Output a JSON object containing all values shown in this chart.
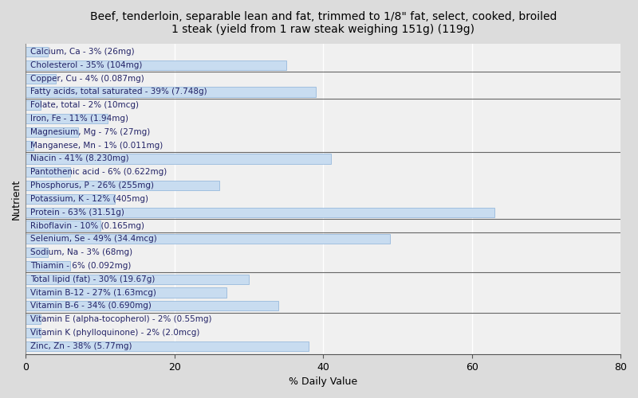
{
  "title": "Beef, tenderloin, separable lean and fat, trimmed to 1/8\" fat, select, cooked, broiled\n1 steak (yield from 1 raw steak weighing 151g) (119g)",
  "xlabel": "% Daily Value",
  "ylabel": "Nutrient",
  "xlim": [
    0,
    80
  ],
  "background_color": "#dcdcdc",
  "plot_bg_color": "#f0f0f0",
  "bar_color": "#c8dcf0",
  "bar_edge_color": "#8ab0d8",
  "text_color": "#222266",
  "nutrients": [
    "Calcium, Ca - 3% (26mg)",
    "Cholesterol - 35% (104mg)",
    "Copper, Cu - 4% (0.087mg)",
    "Fatty acids, total saturated - 39% (7.748g)",
    "Folate, total - 2% (10mcg)",
    "Iron, Fe - 11% (1.94mg)",
    "Magnesium, Mg - 7% (27mg)",
    "Manganese, Mn - 1% (0.011mg)",
    "Niacin - 41% (8.230mg)",
    "Pantothenic acid - 6% (0.622mg)",
    "Phosphorus, P - 26% (255mg)",
    "Potassium, K - 12% (405mg)",
    "Protein - 63% (31.51g)",
    "Riboflavin - 10% (0.165mg)",
    "Selenium, Se - 49% (34.4mcg)",
    "Sodium, Na - 3% (68mg)",
    "Thiamin - 6% (0.092mg)",
    "Total lipid (fat) - 30% (19.67g)",
    "Vitamin B-12 - 27% (1.63mcg)",
    "Vitamin B-6 - 34% (0.690mg)",
    "Vitamin E (alpha-tocopherol) - 2% (0.55mg)",
    "Vitamin K (phylloquinone) - 2% (2.0mcg)",
    "Zinc, Zn - 38% (5.77mg)"
  ],
  "values": [
    3,
    35,
    4,
    39,
    2,
    11,
    7,
    1,
    41,
    6,
    26,
    12,
    63,
    10,
    49,
    3,
    6,
    30,
    27,
    34,
    2,
    2,
    38
  ],
  "tick_positions": [
    0,
    20,
    40,
    60,
    80
  ],
  "group_separator_after": [
    1,
    3,
    7,
    12,
    13,
    16,
    19
  ],
  "title_fontsize": 10,
  "label_fontsize": 7.5,
  "axis_fontsize": 9,
  "bar_height": 0.72
}
